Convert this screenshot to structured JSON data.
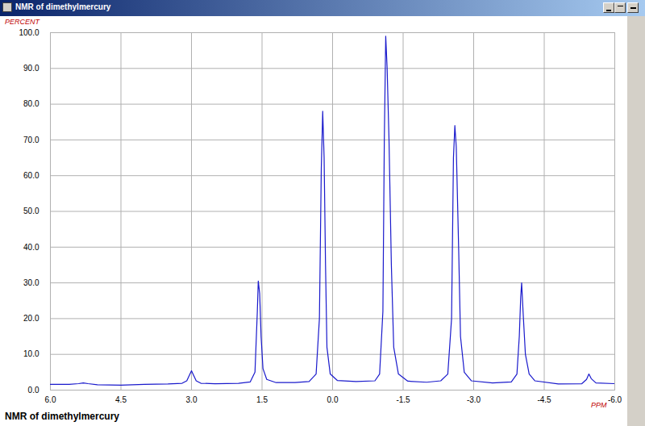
{
  "chart_data": {
    "type": "line",
    "title": "NMR of dimethylmercury",
    "caption": "NMR of dimethylmercury",
    "x_label": "PPM",
    "y_label": "PERCENT",
    "color": "#1a1acc",
    "grid": true,
    "x": [
      6.0,
      5.6,
      5.4,
      5.3,
      5.2,
      5.0,
      4.5,
      4.0,
      3.5,
      3.2,
      3.1,
      3.0,
      2.95,
      2.9,
      2.8,
      2.5,
      2.0,
      1.75,
      1.65,
      1.6,
      1.58,
      1.55,
      1.52,
      1.48,
      1.4,
      1.2,
      0.8,
      0.5,
      0.35,
      0.28,
      0.24,
      0.21,
      0.18,
      0.15,
      0.12,
      0.05,
      -0.1,
      -0.5,
      -0.9,
      -1.0,
      -1.07,
      -1.1,
      -1.13,
      -1.16,
      -1.2,
      -1.25,
      -1.3,
      -1.4,
      -1.6,
      -2.0,
      -2.3,
      -2.45,
      -2.53,
      -2.57,
      -2.6,
      -2.63,
      -2.68,
      -2.72,
      -2.8,
      -2.95,
      -3.4,
      -3.8,
      -3.92,
      -3.97,
      -4.0,
      -4.02,
      -4.05,
      -4.1,
      -4.18,
      -4.3,
      -4.8,
      -5.3,
      -5.4,
      -5.45,
      -5.5,
      -5.6,
      -6.0
    ],
    "values": [
      1.6,
      1.6,
      1.8,
      2.0,
      1.8,
      1.5,
      1.4,
      1.6,
      1.7,
      1.9,
      2.6,
      5.4,
      4.0,
      2.6,
      1.9,
      1.8,
      1.9,
      2.3,
      5.0,
      22,
      30.5,
      27,
      15,
      6,
      3.0,
      2.1,
      2.1,
      2.4,
      4.5,
      20,
      62,
      78,
      65,
      35,
      12,
      4.5,
      2.7,
      2.4,
      2.6,
      4.5,
      22,
      70,
      99,
      90,
      70,
      35,
      12,
      4.5,
      2.5,
      2.2,
      2.6,
      4.5,
      20,
      65,
      74,
      68,
      40,
      15,
      5,
      2.6,
      2.0,
      2.3,
      4.5,
      15,
      26,
      30,
      22,
      10,
      4.5,
      2.6,
      1.7,
      1.8,
      3.0,
      4.5,
      3.2,
      2.0,
      1.8
    ],
    "xlim": [
      6.0,
      -6.0
    ],
    "xticks": [
      {
        "value": 6.0,
        "label": "6.0"
      },
      {
        "value": 4.5,
        "label": "4.5"
      },
      {
        "value": 3.0,
        "label": "3.0"
      },
      {
        "value": 1.5,
        "label": "1.5"
      },
      {
        "value": 0.0,
        "label": "0.0"
      },
      {
        "value": -1.5,
        "label": "-1.5"
      },
      {
        "value": -3.0,
        "label": "-3.0"
      },
      {
        "value": -4.5,
        "label": "-4.5"
      },
      {
        "value": -6.0,
        "label": "-6.0"
      }
    ],
    "ylim": [
      0.0,
      100.0
    ],
    "yticks": [
      {
        "value": 0,
        "label": "0.0"
      },
      {
        "value": 10,
        "label": "10.0"
      },
      {
        "value": 20,
        "label": "20.0"
      },
      {
        "value": 30,
        "label": "30.0"
      },
      {
        "value": 40,
        "label": "40.0"
      },
      {
        "value": 50,
        "label": "50.0"
      },
      {
        "value": 60,
        "label": "60.0"
      },
      {
        "value": 70,
        "label": "70.0"
      },
      {
        "value": 80,
        "label": "80.0"
      },
      {
        "value": 90,
        "label": "90.0"
      },
      {
        "value": 100,
        "label": "100.0"
      }
    ]
  }
}
